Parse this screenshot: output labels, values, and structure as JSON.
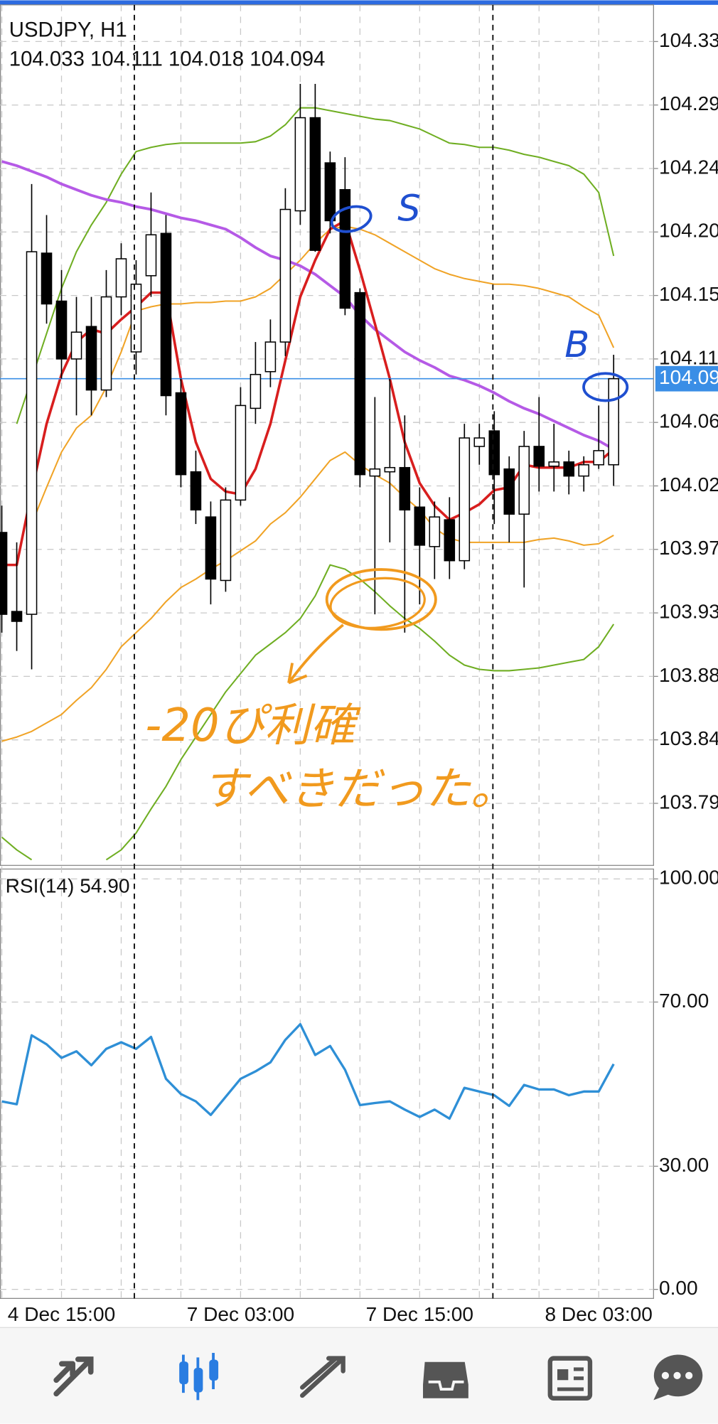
{
  "chart_data": [
    {
      "type": "candlestick",
      "title": "USDJPY, H1",
      "subtitle": "104.033 104.111 104.018 104.094",
      "categories": [
        null,
        null,
        null,
        null,
        "4 Dec 15:00",
        null,
        null,
        null,
        null,
        null,
        null,
        null,
        null,
        null,
        null,
        null,
        "7 Dec 03:00",
        null,
        null,
        null,
        null,
        null,
        null,
        null,
        null,
        null,
        null,
        null,
        "7 Dec 15:00",
        null,
        null,
        null,
        null,
        null,
        null,
        null,
        null,
        null,
        null,
        null,
        "8 Dec 03:00",
        null
      ],
      "open": [
        103.985,
        103.929,
        103.927,
        104.183,
        104.149,
        104.108,
        104.131,
        104.086,
        104.152,
        104.113,
        104.167,
        104.197,
        104.084,
        104.028,
        103.996,
        103.951,
        104.008,
        104.073,
        104.099,
        104.12,
        104.213,
        104.279,
        104.247,
        104.228,
        104.155,
        104.025,
        104.028,
        104.031,
        104.003,
        103.975,
        103.994,
        103.965,
        104.046,
        104.057,
        104.03,
        103.998,
        104.046,
        104.032,
        104.035,
        104.025,
        104.033,
        104.033
      ],
      "high": [
        104.004,
        103.978,
        104.232,
        104.21,
        104.171,
        104.152,
        104.152,
        104.171,
        104.19,
        104.178,
        104.226,
        104.21,
        104.094,
        104.043,
        104.007,
        104.017,
        104.088,
        104.12,
        104.136,
        104.229,
        104.303,
        104.303,
        104.255,
        104.251,
        104.158,
        104.081,
        104.094,
        104.068,
        104.017,
        104.007,
        104.01,
        104.062,
        104.062,
        104.071,
        104.039,
        104.057,
        104.081,
        104.062,
        104.043,
        104.039,
        104.075,
        104.111
      ],
      "low": [
        103.914,
        103.901,
        103.888,
        104.133,
        104.094,
        104.068,
        104.068,
        104.081,
        104.139,
        104.097,
        104.152,
        104.068,
        104.017,
        103.991,
        103.934,
        103.943,
        104.004,
        104.062,
        104.088,
        104.11,
        104.203,
        104.184,
        104.197,
        104.139,
        104.017,
        103.927,
        103.978,
        103.914,
        103.934,
        103.952,
        103.952,
        103.959,
        104.033,
        103.991,
        103.978,
        103.946,
        104.014,
        104.014,
        104.012,
        104.014,
        104.03,
        104.018
      ],
      "close": [
        103.927,
        103.922,
        104.184,
        104.147,
        104.108,
        104.127,
        104.086,
        104.152,
        104.179,
        104.161,
        104.196,
        104.082,
        104.026,
        104.001,
        103.952,
        104.008,
        104.075,
        104.097,
        104.12,
        104.214,
        104.279,
        104.185,
        104.206,
        104.144,
        104.026,
        104.03,
        104.031,
        104.001,
        103.976,
        103.996,
        103.965,
        104.052,
        104.052,
        104.026,
        103.998,
        104.046,
        104.032,
        104.035,
        104.025,
        104.033,
        104.043,
        104.094
      ],
      "up_color": "#ffffff",
      "down_color": "#000000",
      "lines": [
        {
          "color": "#f0a326",
          "values": [
            103.837,
            103.84,
            103.844,
            103.85,
            103.856,
            103.866,
            103.875,
            103.888,
            103.904,
            103.914,
            103.924,
            103.936,
            103.946,
            103.952,
            103.959,
            103.965,
            103.972,
            103.979,
            103.991,
            103.999,
            104.01,
            104.023,
            104.036,
            104.042,
            104.033,
            104.026,
            104.02,
            104.01,
            104.001,
            103.988,
            103.981,
            103.978,
            103.978,
            103.978,
            103.978,
            103.978,
            103.98,
            103.981,
            103.979,
            103.976,
            103.977,
            103.983
          ]
        },
        {
          "color": "#f0a326",
          "values": [
            null,
            null,
            103.991,
            104.017,
            104.042,
            104.059,
            104.068,
            104.088,
            104.113,
            104.142,
            104.145,
            104.147,
            104.147,
            104.148,
            104.148,
            104.149,
            104.149,
            104.152,
            104.158,
            104.168,
            104.178,
            104.19,
            104.2,
            104.202,
            104.2,
            104.196,
            104.19,
            104.184,
            104.178,
            104.172,
            104.168,
            104.165,
            104.163,
            104.161,
            104.161,
            104.16,
            104.158,
            104.155,
            104.152,
            104.145,
            104.139,
            104.116
          ]
        },
        {
          "color": "#6fae22",
          "values": [
            null,
            104.062,
            104.094,
            104.126,
            104.158,
            104.184,
            104.203,
            104.219,
            104.239,
            104.255,
            104.258,
            104.26,
            104.261,
            104.261,
            104.261,
            104.261,
            104.261,
            104.262,
            104.266,
            104.274,
            104.286,
            104.286,
            104.284,
            104.282,
            104.28,
            104.278,
            104.277,
            104.274,
            104.271,
            104.266,
            104.261,
            104.26,
            104.258,
            104.258,
            104.256,
            104.253,
            104.251,
            104.248,
            104.245,
            104.239,
            104.226,
            104.181
          ]
        },
        {
          "color": "#6fae22",
          "values": [
            103.769,
            103.76,
            103.753,
            null,
            null,
            null,
            null,
            103.753,
            103.76,
            103.772,
            103.789,
            103.805,
            103.824,
            103.84,
            103.856,
            103.872,
            103.885,
            103.898,
            103.906,
            103.914,
            103.924,
            103.94,
            103.962,
            103.959,
            103.952,
            103.943,
            103.933,
            103.924,
            103.917,
            103.908,
            103.898,
            103.891,
            103.888,
            103.887,
            103.887,
            103.888,
            103.889,
            103.891,
            103.893,
            103.895,
            103.904,
            103.92
          ]
        },
        {
          "color": "#b55ae6",
          "values": [
            104.248,
            104.245,
            104.241,
            104.237,
            104.232,
            104.228,
            104.224,
            104.221,
            104.219,
            104.216,
            104.214,
            104.211,
            104.208,
            104.206,
            104.203,
            104.2,
            104.194,
            104.187,
            104.181,
            104.178,
            104.174,
            104.168,
            104.16,
            104.152,
            104.139,
            104.129,
            104.121,
            104.113,
            104.107,
            104.102,
            104.096,
            104.093,
            104.089,
            104.084,
            104.078,
            104.073,
            104.069,
            104.064,
            104.059,
            104.054,
            104.05,
            104.044
          ]
        },
        {
          "color": "#d81e1e",
          "values": [
            103.962,
            103.962,
            104.014,
            104.062,
            104.097,
            104.12,
            104.129,
            104.126,
            104.136,
            104.145,
            104.155,
            104.155,
            104.094,
            104.049,
            104.023,
            104.014,
            104.012,
            104.03,
            104.062,
            104.107,
            104.152,
            104.178,
            104.2,
            104.206,
            104.171,
            104.133,
            104.094,
            104.049,
            104.02,
            104.004,
            103.994,
            103.999,
            104.005,
            104.015,
            104.017,
            104.033,
            104.031,
            104.031,
            104.031,
            104.035,
            104.035,
            104.044
          ]
        }
      ],
      "current_price": 104.094,
      "current_price_color": "#3a8ee6",
      "ylim": [
        103.749,
        104.359
      ],
      "yticks": [
        {
          "value": 104.333,
          "label": "104.33"
        },
        {
          "value": 104.288,
          "label": "104.29"
        },
        {
          "value": 104.243,
          "label": "104.24"
        },
        {
          "value": 104.198,
          "label": "104.20"
        },
        {
          "value": 104.153,
          "label": "104.15"
        },
        {
          "value": 104.108,
          "label": "104.11"
        },
        {
          "value": 104.063,
          "label": "104.06"
        },
        {
          "value": 104.018,
          "label": "104.02"
        },
        {
          "value": 103.973,
          "label": "103.97"
        },
        {
          "value": 103.928,
          "label": "103.93"
        },
        {
          "value": 103.883,
          "label": "103.88"
        },
        {
          "value": 103.838,
          "label": "103.84"
        },
        {
          "value": 103.793,
          "label": "103.79"
        }
      ],
      "grid": true
    },
    {
      "type": "line",
      "title": "RSI(14) 54.90",
      "values": [
        45.8,
        45.1,
        61.9,
        59.7,
        56.4,
        58.0,
        54.6,
        58.6,
        60.2,
        58.6,
        61.5,
        51.3,
        47.6,
        45.8,
        42.5,
        46.9,
        51.3,
        53.1,
        55.3,
        60.8,
        64.6,
        57.1,
        59.3,
        53.5,
        44.9,
        45.4,
        45.8,
        43.8,
        42.0,
        43.8,
        41.6,
        49.1,
        48.2,
        47.3,
        44.7,
        49.8,
        48.7,
        48.7,
        47.3,
        48.2,
        48.2,
        54.9
      ],
      "color": "#2e8fd6",
      "ylim": [
        -2.2,
        102.4
      ],
      "yticks": [
        {
          "value": 100,
          "label": "100.00"
        },
        {
          "value": 70,
          "label": "70.00"
        },
        {
          "value": 30,
          "label": "30.00"
        },
        {
          "value": 0,
          "label": "0.00"
        }
      ],
      "grid": true
    }
  ],
  "annotations": {
    "sell": "S",
    "buy": "B",
    "note_line1": "-20ぴ利確",
    "note_line2": "すべきだった。"
  }
}
